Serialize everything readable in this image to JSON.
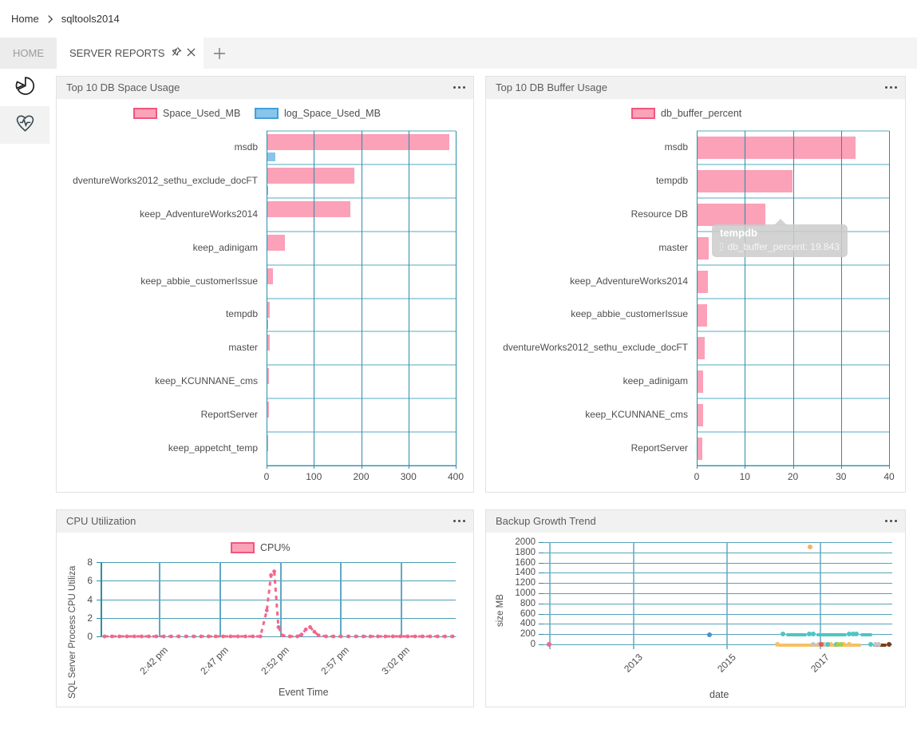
{
  "breadcrumb": {
    "home": "Home",
    "server": "sqltools2014"
  },
  "tabs": {
    "home_label": "HOME",
    "active_label": "SERVER REPORTS"
  },
  "sidebar": {
    "items": [
      {
        "icon": "pie-chart-icon"
      },
      {
        "icon": "health-heart-icon"
      }
    ]
  },
  "colors": {
    "pink_fill": "#FBA1B8",
    "pink_border": "#F1567E",
    "blue_fill": "#87C5EC",
    "blue_border": "#42A0DC",
    "grid_dark": "#2E8CA8",
    "grid_light": "#A9D4E1",
    "grid_mid": "#5FA8C4",
    "cpu_line": "#F4668C"
  },
  "chart_data": [
    {
      "id": "space",
      "type": "bar",
      "orientation": "horizontal",
      "title": "Top 10 DB Space Usage",
      "categories": [
        "msdb",
        "dventureWorks2012_sethu_exclude_docFT",
        "keep_AdventureWorks2014",
        "keep_adinigam",
        "keep_abbie_customerIssue",
        "tempdb",
        "master",
        "keep_KCUNNANE_cms",
        "ReportServer",
        "keep_appetcht_temp"
      ],
      "series": [
        {
          "name": "Space_Used_MB",
          "fill": "#FBA1B8",
          "border": "#F1567E",
          "values": [
            386,
            186,
            178,
            39,
            13,
            6,
            6,
            5,
            5,
            4
          ]
        },
        {
          "name": "log_Space_Used_MB",
          "fill": "#87C5EC",
          "border": "#42A0DC",
          "values": [
            19,
            3,
            1,
            1,
            1,
            4,
            1,
            0.5,
            0.5,
            0.5
          ]
        }
      ],
      "xticks": [
        0,
        100,
        200,
        300,
        400
      ],
      "xlim": [
        0,
        400
      ]
    },
    {
      "id": "buffer",
      "type": "bar",
      "orientation": "horizontal",
      "title": "Top 10 DB Buffer Usage",
      "categories": [
        "msdb",
        "tempdb",
        "Resource DB",
        "master",
        "keep_AdventureWorks2014",
        "keep_abbie_customerIssue",
        "dventureWorks2012_sethu_exclude_docFT",
        "keep_adinigam",
        "keep_KCUNNANE_cms",
        "ReportServer"
      ],
      "series": [
        {
          "name": "db_buffer_percent",
          "fill": "#FBA1B8",
          "border": "#F1567E",
          "values": [
            33,
            19.843,
            14.3,
            2.5,
            2.4,
            2.1,
            1.6,
            1.4,
            1.3,
            1.1
          ]
        }
      ],
      "xticks": [
        0,
        10,
        20,
        30,
        40
      ],
      "xlim": [
        0,
        40
      ],
      "tooltip": {
        "title": "tempdb",
        "text": "db_buffer_percent: 19.843"
      }
    },
    {
      "id": "cpu",
      "type": "line",
      "title": "CPU Utilization",
      "legend": "CPU%",
      "ylabel": "SQL Server Process CPU Utiliza",
      "xlabel": "Event Time",
      "yticks": [
        0,
        2,
        4,
        6,
        8
      ],
      "ylim": [
        0,
        8
      ],
      "xticks": [
        "2:42 pm",
        "2:47 pm",
        "2:52 pm",
        "2:57 pm",
        "3:02 pm"
      ],
      "points": [
        [
          0.011,
          0
        ],
        [
          0.032,
          0
        ],
        [
          0.053,
          0
        ],
        [
          0.074,
          0
        ],
        [
          0.095,
          0
        ],
        [
          0.116,
          0
        ],
        [
          0.136,
          0
        ],
        [
          0.157,
          0
        ],
        [
          0.178,
          0
        ],
        [
          0.199,
          0
        ],
        [
          0.22,
          0
        ],
        [
          0.241,
          0
        ],
        [
          0.262,
          0
        ],
        [
          0.283,
          0
        ],
        [
          0.304,
          0
        ],
        [
          0.324,
          0
        ],
        [
          0.345,
          0
        ],
        [
          0.366,
          0
        ],
        [
          0.387,
          0
        ],
        [
          0.408,
          0
        ],
        [
          0.429,
          0
        ],
        [
          0.45,
          0
        ],
        [
          0.468,
          2.8
        ],
        [
          0.48,
          6.6
        ],
        [
          0.489,
          7.0
        ],
        [
          0.501,
          1.0
        ],
        [
          0.512,
          0.1
        ],
        [
          0.533,
          0
        ],
        [
          0.554,
          0
        ],
        [
          0.566,
          0.2
        ],
        [
          0.578,
          0.75
        ],
        [
          0.59,
          1.0
        ],
        [
          0.602,
          0.5
        ],
        [
          0.614,
          0.1
        ],
        [
          0.635,
          0
        ],
        [
          0.656,
          0
        ],
        [
          0.677,
          0
        ],
        [
          0.698,
          0
        ],
        [
          0.719,
          0
        ],
        [
          0.74,
          0
        ],
        [
          0.76,
          0
        ],
        [
          0.781,
          0
        ],
        [
          0.802,
          0
        ],
        [
          0.823,
          0
        ],
        [
          0.844,
          0
        ],
        [
          0.865,
          0
        ],
        [
          0.886,
          0
        ],
        [
          0.907,
          0
        ],
        [
          0.928,
          0
        ],
        [
          0.949,
          0
        ],
        [
          0.97,
          0
        ],
        [
          0.991,
          0
        ]
      ]
    },
    {
      "id": "backup",
      "type": "scatter",
      "title": "Backup Growth Trend",
      "ylabel": "size MB",
      "xlabel": "date",
      "yticks": [
        0,
        200,
        400,
        600,
        800,
        1000,
        1200,
        1400,
        1600,
        1800,
        2000
      ],
      "ylim": [
        0,
        2000
      ],
      "xticks": [
        "2013",
        "2015",
        "2017"
      ],
      "groups": [
        {
          "name": "series-pink",
          "color": "#F0698C",
          "dots": [
            [
              0.016,
              0
            ]
          ]
        },
        {
          "name": "series-blue",
          "color": "#4A90D9",
          "dots": [
            [
              0.476,
              190
            ]
          ]
        },
        {
          "name": "series-orange",
          "color": "#F5B35B",
          "dots": [
            [
              0.764,
              1900
            ]
          ]
        },
        {
          "name": "series-yellow",
          "color": "#F5C163",
          "dots": [
            [
              0.67,
              0
            ],
            [
              0.824,
              0
            ],
            [
              0.86,
              0
            ],
            [
              0.876,
              0
            ]
          ],
          "segments": [
            [
              0.672,
              0.91,
              0
            ]
          ]
        },
        {
          "name": "series-teal",
          "color": "#4EC5C4",
          "dots": [
            [
              0.686,
              200
            ],
            [
              0.762,
              200
            ],
            [
              0.774,
              200
            ],
            [
              0.876,
              200
            ],
            [
              0.888,
              200
            ],
            [
              0.897,
              200
            ],
            [
              0.815,
              0
            ],
            [
              0.84,
              0
            ],
            [
              0.938,
              0
            ]
          ],
          "segments": [
            [
              0.695,
              0.755,
              200
            ],
            [
              0.783,
              0.87,
              200
            ],
            [
              0.908,
              0.943,
              200
            ]
          ]
        },
        {
          "name": "series-gray",
          "color": "#C4C4C4",
          "dots": [
            [
              0.774,
              0
            ],
            [
              0.789,
              0
            ],
            [
              0.803,
              0
            ],
            [
              0.952,
              0
            ],
            [
              0.961,
              0
            ]
          ]
        },
        {
          "name": "series-red",
          "color": "#E8564F",
          "dots": [
            [
              0.796,
              0
            ]
          ]
        },
        {
          "name": "series-green",
          "color": "#A6CE4E",
          "dots": [
            [
              0.844,
              0
            ],
            [
              0.853,
              0
            ]
          ]
        },
        {
          "name": "series-brown",
          "color": "#7D3C14",
          "dots": [
            [
              0.991,
              0
            ]
          ],
          "segments": [
            [
              0.945,
              0.984,
              0
            ]
          ]
        }
      ]
    }
  ]
}
